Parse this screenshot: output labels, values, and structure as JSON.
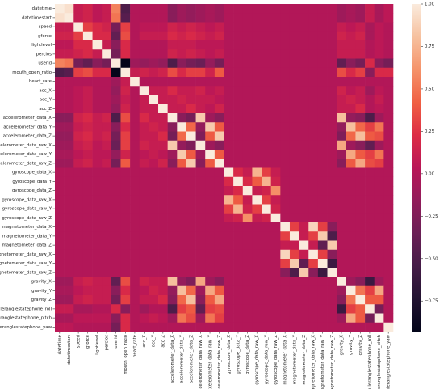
{
  "chart_data": {
    "type": "heatmap",
    "colormap": "rocket",
    "categories": [
      "datetime",
      "datetimestart",
      "speed",
      "gforce",
      "lightlevel",
      "perclos",
      "userid",
      "mouth_open_ratio",
      "heart_rate",
      "acc_X",
      "acc_Y",
      "acc_Z",
      "accelerometer_data_X",
      "accelerometer_data_Y",
      "accelerometer_data_Z",
      "accelerometer_data_raw_X",
      "accelerometer_data_raw_Y",
      "accelerometer_data_raw_Z",
      "gyroscope_data_X",
      "gyroscope_data_Y",
      "gyroscope_data_Z",
      "gyroscope_data_raw_X",
      "gyroscope_data_raw_Y",
      "gyroscope_data_raw_Z",
      "magnetometer_data_X",
      "magnetometer_data_Y",
      "magnetometer_data_Z",
      "magnetometer_data_raw_X",
      "magnetometer_data_raw_Y",
      "magnetometer_data_raw_Z",
      "gravity_X",
      "gravity_Y",
      "gravity_Z",
      "euleranglestatephone_roll",
      "euleranglestatephone_pitch",
      "euleranglestatephone_yaw"
    ],
    "values": [
      [
        1,
        0.95,
        0.1,
        0.15,
        0.05,
        0.1,
        0.55,
        -0.5,
        0,
        0,
        0,
        0,
        -0.2,
        -0.1,
        -0.15,
        -0.1,
        -0.05,
        -0.1,
        0,
        0,
        0,
        0,
        0,
        0,
        0,
        0,
        0,
        0,
        0,
        0,
        -0.1,
        -0.05,
        -0.1,
        0.1,
        -0.05,
        0.05
      ],
      [
        0.95,
        1,
        0.1,
        0.15,
        0.05,
        0.1,
        0.5,
        -0.45,
        0,
        0,
        0,
        0,
        -0.2,
        -0.1,
        -0.15,
        -0.1,
        -0.05,
        -0.1,
        0,
        0,
        0,
        0,
        0,
        0,
        0,
        0,
        0,
        0,
        0,
        0,
        -0.1,
        -0.05,
        -0.1,
        0.1,
        -0.05,
        0.05
      ],
      [
        0.1,
        0.1,
        1,
        0.3,
        0.2,
        0.15,
        -0.3,
        0.3,
        0,
        0.05,
        0.05,
        0.05,
        0.15,
        0.1,
        0.15,
        0.1,
        0.05,
        0.1,
        0,
        0,
        0,
        0,
        0,
        0,
        0,
        0,
        0,
        0,
        0,
        0,
        0.1,
        0.05,
        0.1,
        -0.05,
        0.05,
        0
      ],
      [
        0.15,
        0.15,
        0.3,
        1,
        0.2,
        0.2,
        -0.4,
        0.35,
        0,
        0.1,
        0.1,
        0.1,
        0.2,
        0.15,
        0.2,
        0.15,
        0.1,
        0.15,
        0,
        0,
        0,
        0,
        0,
        0,
        0,
        0,
        0,
        0,
        0,
        0,
        0.15,
        0.1,
        0.15,
        -0.05,
        0.05,
        0
      ],
      [
        0.05,
        0.05,
        0.2,
        0.2,
        1,
        0.1,
        -0.2,
        0.2,
        0,
        0,
        0,
        0,
        0.1,
        0.1,
        0.1,
        0.05,
        0.05,
        0.05,
        0,
        0,
        0,
        0,
        0,
        0,
        0,
        0,
        0,
        0,
        0,
        0,
        0.1,
        0.1,
        0.1,
        0,
        0.05,
        0
      ],
      [
        0.1,
        0.1,
        0.15,
        0.2,
        0.1,
        1,
        -0.3,
        0.2,
        0,
        0,
        0,
        0,
        0.15,
        0.1,
        0.15,
        0.1,
        0.05,
        0.1,
        0,
        0,
        0,
        0,
        0,
        0,
        0,
        0,
        0,
        0,
        0,
        0,
        0.1,
        0.1,
        0.1,
        0,
        0.05,
        0
      ],
      [
        0.55,
        0.5,
        -0.3,
        -0.4,
        -0.2,
        -0.3,
        1,
        -0.95,
        -0.1,
        -0.15,
        -0.1,
        -0.15,
        -0.5,
        -0.2,
        -0.3,
        -0.35,
        -0.15,
        -0.3,
        0,
        0,
        0,
        0,
        0,
        0,
        0,
        0,
        0,
        0,
        0,
        0,
        -0.4,
        -0.2,
        -0.3,
        0.2,
        -0.2,
        -0.3
      ],
      [
        -0.5,
        -0.45,
        0.3,
        0.35,
        0.2,
        0.2,
        -0.95,
        1,
        0.1,
        0.15,
        0.1,
        0.15,
        0.35,
        0.2,
        0.3,
        0.3,
        0.15,
        0.4,
        0,
        0,
        0,
        0,
        0,
        0,
        0,
        0,
        0,
        0,
        0,
        0,
        0.35,
        0.2,
        0.3,
        -0.2,
        0.2,
        0.2
      ],
      [
        0,
        0,
        0,
        0,
        0,
        0,
        -0.1,
        0.1,
        1,
        0,
        0,
        0,
        0,
        0,
        0,
        0,
        0,
        0,
        0,
        0,
        0,
        0,
        0,
        0,
        0,
        0,
        0,
        0,
        0,
        0,
        0,
        0,
        0,
        0,
        0,
        0
      ],
      [
        0,
        0,
        0.05,
        0.1,
        0,
        0,
        -0.15,
        0.15,
        0,
        1,
        0.1,
        0.1,
        0.2,
        0.1,
        0.1,
        0.15,
        0.05,
        0.1,
        0,
        0,
        0,
        0,
        0,
        0,
        0,
        0,
        0,
        0,
        0,
        0,
        0.15,
        0.05,
        0.1,
        -0.1,
        0.05,
        0
      ],
      [
        0,
        0,
        0.05,
        0.1,
        0,
        0,
        -0.1,
        0.1,
        0,
        0.1,
        1,
        0.1,
        0.1,
        0.15,
        0.1,
        0.1,
        0.1,
        0.05,
        0,
        0,
        0,
        0,
        0,
        0,
        0,
        0,
        0,
        0,
        0,
        0,
        0.1,
        0.15,
        0.1,
        0,
        0.1,
        0
      ],
      [
        0,
        0,
        0.05,
        0.1,
        0,
        0,
        -0.15,
        0.15,
        0,
        0.1,
        0.1,
        1,
        0.1,
        0.1,
        0.2,
        0.1,
        0.05,
        0.15,
        0,
        0,
        0,
        0,
        0,
        0,
        0,
        0,
        0,
        0,
        0,
        0,
        0.1,
        0.1,
        0.2,
        0,
        0.05,
        0
      ],
      [
        -0.2,
        -0.2,
        0.15,
        0.2,
        0.1,
        0.15,
        -0.5,
        0.35,
        0,
        0.2,
        0.1,
        0.1,
        1,
        -0.2,
        -0.3,
        0.85,
        -0.1,
        -0.2,
        0,
        0,
        0,
        0,
        0,
        0,
        0,
        0,
        0,
        0,
        0,
        0,
        0.8,
        -0.15,
        -0.2,
        -0.5,
        -0.1,
        0
      ],
      [
        -0.1,
        -0.1,
        0.1,
        0.15,
        0.1,
        0.1,
        -0.2,
        0.2,
        0,
        0.1,
        0.15,
        0.1,
        -0.2,
        1,
        0.45,
        -0.15,
        0.85,
        0.4,
        0,
        0,
        0,
        0,
        0,
        0,
        0,
        0,
        0,
        0,
        0,
        0,
        -0.15,
        0.8,
        0.45,
        0.3,
        0.5,
        0
      ],
      [
        -0.15,
        -0.15,
        0.15,
        0.2,
        0.1,
        0.15,
        -0.3,
        0.3,
        0,
        0.1,
        0.1,
        0.2,
        -0.3,
        0.45,
        1,
        -0.25,
        0.4,
        0.85,
        0,
        0,
        0,
        0,
        0,
        0,
        0,
        0,
        0,
        0,
        0,
        0,
        -0.25,
        0.45,
        0.8,
        0.4,
        0.35,
        0
      ],
      [
        -0.1,
        -0.1,
        0.1,
        0.15,
        0.05,
        0.1,
        -0.35,
        0.3,
        0,
        0.15,
        0.1,
        0.1,
        0.85,
        -0.15,
        -0.25,
        1,
        -0.1,
        -0.2,
        0,
        0,
        0,
        0,
        0,
        0,
        0,
        0,
        0,
        0,
        0,
        0,
        0.7,
        -0.1,
        -0.2,
        -0.4,
        -0.1,
        0
      ],
      [
        -0.05,
        -0.05,
        0.05,
        0.1,
        0.05,
        0.05,
        -0.15,
        0.15,
        0,
        0.05,
        0.1,
        0.05,
        -0.1,
        0.85,
        0.4,
        -0.1,
        1,
        0.4,
        0,
        0,
        0,
        0,
        0,
        0,
        0,
        0,
        0,
        0,
        0,
        0,
        -0.1,
        0.7,
        0.4,
        0.3,
        0.5,
        0
      ],
      [
        -0.1,
        -0.1,
        0.1,
        0.15,
        0.05,
        0.1,
        -0.3,
        0.4,
        0,
        0.1,
        0.05,
        0.15,
        -0.2,
        0.4,
        0.85,
        -0.2,
        0.4,
        1,
        0,
        0,
        0,
        0,
        0,
        0,
        0,
        0,
        0,
        0,
        0,
        0,
        -0.2,
        0.4,
        0.7,
        0.35,
        0.3,
        0
      ],
      [
        0,
        0,
        0,
        0,
        0,
        0,
        0,
        0,
        0,
        0,
        0,
        0,
        0,
        0,
        0,
        0,
        0,
        0,
        1,
        0.2,
        0.1,
        0.75,
        0.3,
        0.1,
        0,
        0,
        0,
        0,
        0,
        0,
        0,
        0,
        0,
        0,
        0,
        0
      ],
      [
        0,
        0,
        0,
        0,
        0,
        0,
        0,
        0,
        0,
        0,
        0,
        0,
        0,
        0,
        0,
        0,
        0,
        0,
        0.2,
        1,
        0.2,
        0.4,
        0.75,
        0.15,
        0,
        0,
        0,
        0,
        0,
        0,
        0,
        0,
        0,
        0,
        0,
        0
      ],
      [
        0,
        0,
        0,
        0,
        0,
        0,
        0,
        0,
        0,
        0,
        0,
        0,
        0,
        0,
        0,
        0,
        0,
        0,
        0.1,
        0.2,
        1,
        0.1,
        0.15,
        0.6,
        0,
        0,
        0,
        0,
        0,
        0,
        0,
        0,
        0,
        0,
        0,
        0
      ],
      [
        0,
        0,
        0,
        0,
        0,
        0,
        0,
        0,
        0,
        0,
        0,
        0,
        0,
        0,
        0,
        0,
        0,
        0,
        0.75,
        0.4,
        0.1,
        1,
        0.3,
        0.1,
        0,
        0,
        0,
        0,
        0,
        0,
        0,
        0,
        0,
        0,
        0,
        0
      ],
      [
        0,
        0,
        0,
        0,
        0,
        0,
        0,
        0,
        0,
        0,
        0,
        0,
        0,
        0,
        0,
        0,
        0,
        0,
        0.3,
        0.75,
        0.15,
        0.3,
        1,
        0.15,
        0,
        0,
        0,
        0,
        0,
        0,
        0,
        0,
        0,
        0,
        0,
        0
      ],
      [
        0,
        0,
        0,
        0,
        0,
        0,
        0,
        0,
        0,
        0,
        0,
        0,
        0,
        0,
        0,
        0,
        0,
        0,
        0.1,
        0.15,
        0.6,
        0.1,
        0.15,
        1,
        0,
        0,
        0,
        0,
        0,
        0,
        0,
        0,
        0,
        0,
        0,
        0
      ],
      [
        0,
        0,
        0,
        0,
        0,
        0,
        0,
        0,
        0,
        0,
        0,
        0,
        0,
        0,
        0,
        0,
        0,
        0,
        0,
        0,
        0,
        0,
        0,
        0,
        1,
        0.3,
        0.1,
        0.9,
        0.3,
        -0.2,
        0,
        0,
        0,
        0,
        0,
        0
      ],
      [
        0,
        0,
        0,
        0,
        0,
        0,
        0,
        0,
        0,
        0,
        0,
        0,
        0,
        0,
        0,
        0,
        0,
        0,
        0,
        0,
        0,
        0,
        0,
        0,
        0.3,
        1,
        0.1,
        0.3,
        0.85,
        -0.5,
        0,
        0,
        0,
        0,
        0,
        0
      ],
      [
        0,
        0,
        0,
        0,
        0,
        0,
        0,
        0,
        0,
        0,
        0,
        0,
        0,
        0,
        0,
        0,
        0,
        0,
        0,
        0,
        0,
        0,
        0,
        0,
        0.1,
        0.1,
        1,
        0.1,
        -0.4,
        0.85,
        0,
        0,
        0,
        0,
        0,
        0
      ],
      [
        0,
        0,
        0,
        0,
        0,
        0,
        0,
        0,
        0,
        0,
        0,
        0,
        0,
        0,
        0,
        0,
        0,
        0,
        0,
        0,
        0,
        0,
        0,
        0,
        0.9,
        0.3,
        0.1,
        1,
        0.3,
        -0.2,
        0,
        0,
        0,
        0,
        0,
        0
      ],
      [
        0,
        0,
        0,
        0,
        0,
        0,
        0,
        0,
        0,
        0,
        0,
        0,
        0,
        0,
        0,
        0,
        0,
        0,
        0,
        0,
        0,
        0,
        0,
        0,
        0.3,
        0.85,
        -0.4,
        0.3,
        1,
        -0.6,
        0,
        0,
        0,
        0,
        0,
        0
      ],
      [
        0,
        0,
        0,
        0,
        0,
        0,
        0,
        0,
        0,
        0,
        0,
        0,
        0,
        0,
        0,
        0,
        0,
        0,
        0,
        0,
        0,
        0,
        0,
        0,
        -0.2,
        -0.5,
        0.85,
        -0.2,
        -0.6,
        1,
        0,
        0,
        0,
        0,
        0,
        0
      ],
      [
        -0.1,
        -0.1,
        0.1,
        0.15,
        0.1,
        0.1,
        -0.4,
        0.35,
        0,
        0.15,
        0.1,
        0.1,
        0.8,
        -0.15,
        -0.25,
        0.7,
        -0.1,
        -0.2,
        0,
        0,
        0,
        0,
        0,
        0,
        0,
        0,
        0,
        0,
        0,
        0,
        1,
        -0.1,
        -0.2,
        -0.6,
        -0.1,
        0
      ],
      [
        -0.05,
        -0.05,
        0.05,
        0.1,
        0.1,
        0.1,
        -0.2,
        0.2,
        0,
        0.05,
        0.15,
        0.1,
        -0.15,
        0.8,
        0.45,
        -0.1,
        0.7,
        0.4,
        0,
        0,
        0,
        0,
        0,
        0,
        0,
        0,
        0,
        0,
        0,
        0,
        -0.1,
        1,
        0.5,
        0.3,
        0.7,
        0
      ],
      [
        -0.1,
        -0.1,
        0.1,
        0.15,
        0.1,
        0.1,
        -0.3,
        0.3,
        0,
        0.1,
        0.1,
        0.2,
        -0.2,
        0.45,
        0.8,
        -0.2,
        0.4,
        0.7,
        0,
        0,
        0,
        0,
        0,
        0,
        0,
        0,
        0,
        0,
        0,
        0,
        -0.2,
        0.5,
        1,
        0.4,
        0.4,
        0
      ],
      [
        0.1,
        0.1,
        -0.05,
        -0.05,
        0,
        0,
        0.2,
        -0.2,
        0,
        -0.1,
        0,
        0,
        -0.5,
        0.3,
        0.4,
        -0.4,
        0.3,
        0.35,
        0,
        0,
        0,
        0,
        0,
        0,
        0,
        0,
        0,
        0,
        0,
        0,
        -0.6,
        0.3,
        0.4,
        1,
        -0.3,
        0
      ],
      [
        -0.05,
        -0.05,
        0.05,
        0.05,
        0.05,
        0.05,
        -0.2,
        0.2,
        0,
        0.05,
        0.1,
        0.05,
        -0.1,
        0.5,
        0.35,
        -0.1,
        0.5,
        0.3,
        0,
        0,
        0,
        0,
        0,
        0,
        0,
        0,
        0,
        0,
        0,
        0,
        -0.1,
        0.7,
        0.4,
        -0.3,
        1,
        0
      ],
      [
        0.05,
        0.05,
        0,
        0,
        0,
        0,
        -0.3,
        0.2,
        0,
        0,
        0,
        0,
        0,
        0,
        0,
        0,
        0,
        0,
        0,
        0,
        0,
        0,
        0,
        0,
        0,
        0,
        0,
        0,
        0,
        0,
        0,
        0,
        0,
        0,
        0,
        1
      ]
    ],
    "clim": [
      -0.93,
      1
    ],
    "cticks": [
      {
        "value": 1,
        "label": "1.00"
      },
      {
        "value": 0.75,
        "label": "0.75"
      },
      {
        "value": 0.5,
        "label": "0.50"
      },
      {
        "value": 0.25,
        "label": "0.25"
      },
      {
        "value": 0,
        "label": "0.00"
      },
      {
        "value": -0.25,
        "label": "−0.25"
      },
      {
        "value": -0.5,
        "label": "−0.50"
      },
      {
        "value": -0.75,
        "label": "−0.75"
      }
    ]
  }
}
